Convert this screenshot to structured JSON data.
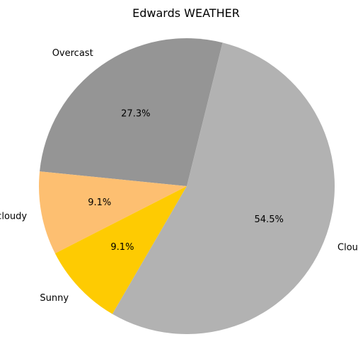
{
  "chart_data": {
    "type": "pie",
    "title": "Edwards WEATHER",
    "slices": [
      {
        "label": "Overcast",
        "value": 27.3,
        "pct_label": "27.3%",
        "color": "#959595"
      },
      {
        "label": "Partly cloudy",
        "value": 9.1,
        "pct_label": "9.1%",
        "color": "#fdbf71"
      },
      {
        "label": "Sunny",
        "value": 9.1,
        "pct_label": "9.1%",
        "color": "#fecb02"
      },
      {
        "label": "Cloudy",
        "value": 54.5,
        "pct_label": "54.5%",
        "color": "#b2b2b2"
      }
    ],
    "legend": "none"
  }
}
